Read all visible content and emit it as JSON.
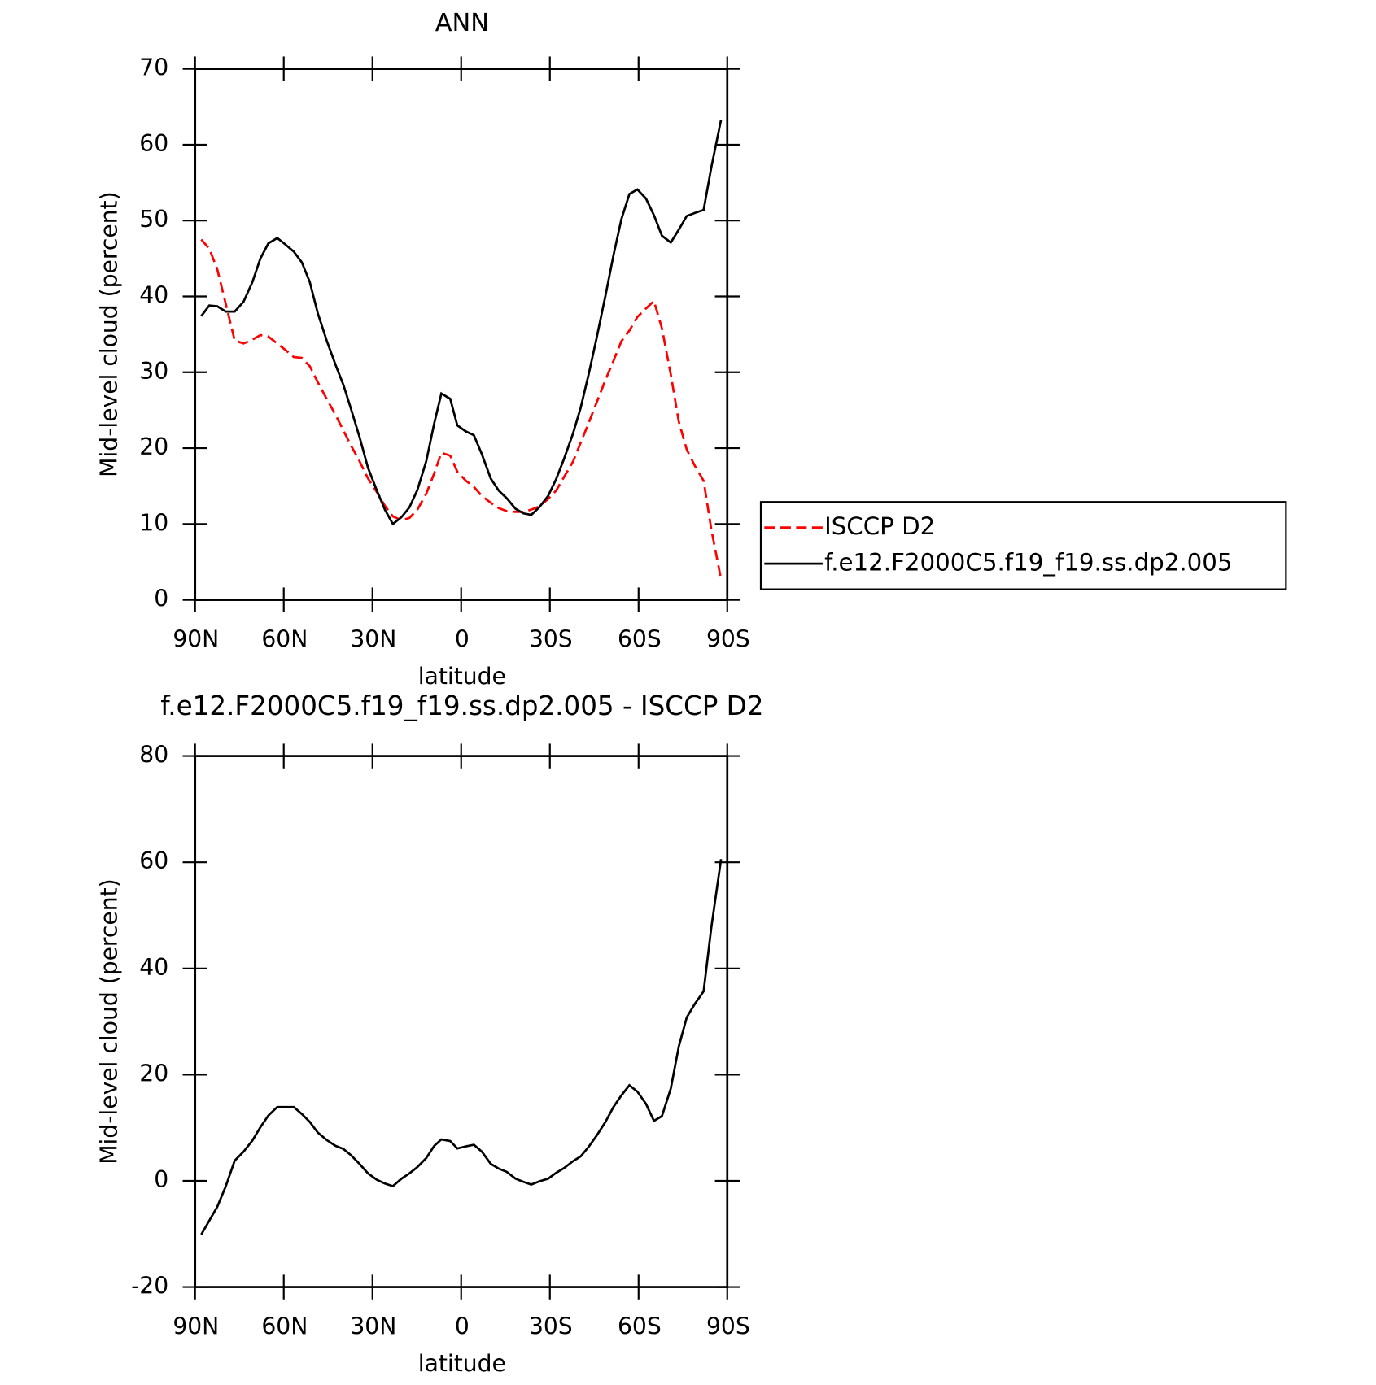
{
  "chart_data": [
    {
      "type": "line",
      "title": "ANN",
      "xlabel": "latitude",
      "ylabel": "Mid-level cloud (percent)",
      "x": [
        87.9,
        85.2,
        82.5,
        79.6,
        76.6,
        73.6,
        70.6,
        67.9,
        65.2,
        62.2,
        59.6,
        56.6,
        53.9,
        51.2,
        48.5,
        45.5,
        42.5,
        39.8,
        37.2,
        34.4,
        31.5,
        28.5,
        25.8,
        23.1,
        20.2,
        17.5,
        14.8,
        11.8,
        9.1,
        6.7,
        3.7,
        1.3,
        -1.6,
        -4.3,
        -7.0,
        -10.0,
        -12.7,
        -15.4,
        -18.4,
        -21.1,
        -23.7,
        -26.4,
        -29.4,
        -32.1,
        -34.8,
        -37.8,
        -40.4,
        -43.1,
        -45.8,
        -48.8,
        -51.5,
        -54.2,
        -56.9,
        -59.6,
        -62.5,
        -65.2,
        -67.9,
        -70.9,
        -73.6,
        -76.3,
        -79.0,
        -82.0,
        -84.6,
        -87.9
      ],
      "series": [
        {
          "name": "ISCCP D2",
          "color": "#ff0000",
          "dash": "dashed",
          "values": [
            47.5,
            46.3,
            43.6,
            39.0,
            34.2,
            33.8,
            34.3,
            34.9,
            34.7,
            33.8,
            33.0,
            32.0,
            31.9,
            30.8,
            28.7,
            26.5,
            24.4,
            22.3,
            20.3,
            18.3,
            16.0,
            14.2,
            12.4,
            11.0,
            10.5,
            10.8,
            11.9,
            14.0,
            16.7,
            19.4,
            19.0,
            16.9,
            15.7,
            14.9,
            13.7,
            12.8,
            12.1,
            11.7,
            11.6,
            11.6,
            11.9,
            12.3,
            13.3,
            14.4,
            16.2,
            18.2,
            20.7,
            23.3,
            26.0,
            29.0,
            31.5,
            34.1,
            35.5,
            37.3,
            38.4,
            39.4,
            35.8,
            29.7,
            23.5,
            19.8,
            17.7,
            15.7,
            9.3,
            2.7
          ]
        },
        {
          "name": "f.e12.F2000C5.f19_f19.ss.dp2.005",
          "color": "#000000",
          "dash": "solid",
          "values": [
            37.4,
            38.8,
            38.7,
            38.0,
            38.0,
            39.3,
            41.9,
            45.0,
            47.0,
            47.7,
            46.9,
            45.9,
            44.5,
            41.9,
            37.8,
            34.2,
            31.0,
            28.3,
            25.1,
            21.5,
            17.4,
            14.4,
            11.9,
            10.0,
            10.9,
            12.2,
            14.5,
            18.3,
            23.3,
            27.2,
            26.5,
            23.0,
            22.2,
            21.7,
            19.2,
            16.0,
            14.4,
            13.4,
            12.0,
            11.4,
            11.2,
            12.2,
            13.7,
            15.9,
            18.6,
            21.9,
            25.3,
            29.7,
            34.5,
            40.1,
            45.4,
            50.2,
            53.5,
            54.1,
            52.9,
            50.7,
            48.0,
            47.1,
            48.8,
            50.6,
            51.0,
            51.4,
            57.0,
            63.3
          ]
        }
      ],
      "xlim": [
        90,
        -90
      ],
      "xticks": [
        {
          "value": 90,
          "label": "90N"
        },
        {
          "value": 60,
          "label": "60N"
        },
        {
          "value": 30,
          "label": "30N"
        },
        0,
        {
          "value": -30,
          "label": "30S"
        },
        {
          "value": -60,
          "label": "60S"
        },
        {
          "value": -90,
          "label": "90S"
        }
      ],
      "ylim": [
        0,
        70
      ],
      "yticks": [
        0,
        10,
        20,
        30,
        40,
        50,
        60,
        70
      ],
      "legend": "right"
    },
    {
      "type": "line",
      "title": "f.e12.F2000C5.f19_f19.ss.dp2.005 - ISCCP D2",
      "xlabel": "latitude",
      "ylabel": "Mid-level cloud (percent)",
      "x": [
        87.9,
        85.2,
        82.5,
        79.6,
        76.6,
        73.6,
        70.6,
        67.9,
        65.2,
        62.2,
        59.6,
        56.6,
        53.9,
        51.2,
        48.5,
        45.5,
        42.5,
        39.8,
        37.2,
        34.4,
        31.5,
        28.5,
        25.8,
        23.1,
        20.2,
        17.5,
        14.8,
        11.8,
        9.1,
        6.7,
        3.7,
        1.3,
        -1.6,
        -4.3,
        -7.0,
        -10.0,
        -12.7,
        -15.4,
        -18.4,
        -21.1,
        -23.7,
        -26.4,
        -29.4,
        -32.1,
        -34.8,
        -37.8,
        -40.4,
        -43.1,
        -45.8,
        -48.8,
        -51.5,
        -54.2,
        -56.9,
        -59.6,
        -62.5,
        -65.2,
        -67.9,
        -70.9,
        -73.6,
        -76.3,
        -79.0,
        -82.0,
        -84.6,
        -87.9
      ],
      "series": [
        {
          "color": "#000000",
          "dash": "solid",
          "values": [
            -10.1,
            -7.5,
            -4.9,
            -1.0,
            3.8,
            5.5,
            7.6,
            10.1,
            12.3,
            13.9,
            13.9,
            13.9,
            12.6,
            11.1,
            9.1,
            7.7,
            6.6,
            6.0,
            4.8,
            3.2,
            1.4,
            0.2,
            -0.5,
            -1.0,
            0.4,
            1.4,
            2.6,
            4.3,
            6.6,
            7.8,
            7.5,
            6.1,
            6.5,
            6.8,
            5.5,
            3.2,
            2.3,
            1.7,
            0.4,
            -0.2,
            -0.7,
            -0.1,
            0.4,
            1.5,
            2.4,
            3.7,
            4.6,
            6.4,
            8.5,
            11.1,
            13.9,
            16.1,
            18.0,
            16.8,
            14.5,
            11.3,
            12.2,
            17.4,
            25.3,
            30.8,
            33.3,
            35.7,
            47.7,
            60.6
          ]
        }
      ],
      "xlim": [
        90,
        -90
      ],
      "xticks": [
        {
          "value": 90,
          "label": "90N"
        },
        {
          "value": 60,
          "label": "60N"
        },
        {
          "value": 30,
          "label": "30N"
        },
        0,
        {
          "value": -30,
          "label": "30S"
        },
        {
          "value": -60,
          "label": "60S"
        },
        {
          "value": -90,
          "label": "90S"
        }
      ],
      "ylim": [
        -20,
        80
      ],
      "yticks": [
        -20,
        0,
        20,
        40,
        60,
        80
      ]
    }
  ]
}
